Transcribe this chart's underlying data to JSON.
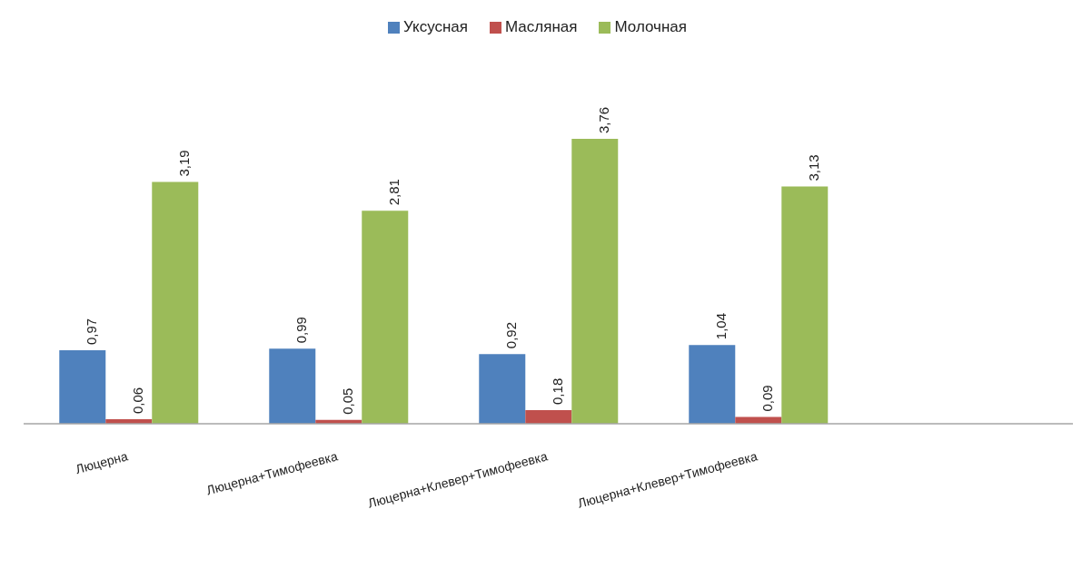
{
  "chart_data": {
    "type": "bar",
    "categories": [
      "Люцерна",
      "Люцерна+Тимофеевка",
      "Люцерна+Клевер+Тимофеевка",
      "Люцерна+Клевер+Тимофеевка",
      null
    ],
    "series": [
      {
        "name": "Уксусная",
        "color": "#4f81bd",
        "values": [
          0.97,
          0.99,
          0.92,
          1.04,
          null
        ],
        "value_labels": [
          "0,97",
          "0,99",
          "0,92",
          "1,04",
          null
        ]
      },
      {
        "name": "Масляная",
        "color": "#c0504d",
        "values": [
          0.06,
          0.05,
          0.18,
          0.09,
          null
        ],
        "value_labels": [
          "0,06",
          "0,05",
          "0,18",
          "0,09",
          null
        ]
      },
      {
        "name": "Молочная",
        "color": "#9bbb59",
        "values": [
          3.19,
          2.81,
          3.76,
          3.13,
          null
        ],
        "value_labels": [
          "3,19",
          "2,81",
          "3,76",
          "3,13",
          null
        ]
      }
    ],
    "legend": "top"
  }
}
